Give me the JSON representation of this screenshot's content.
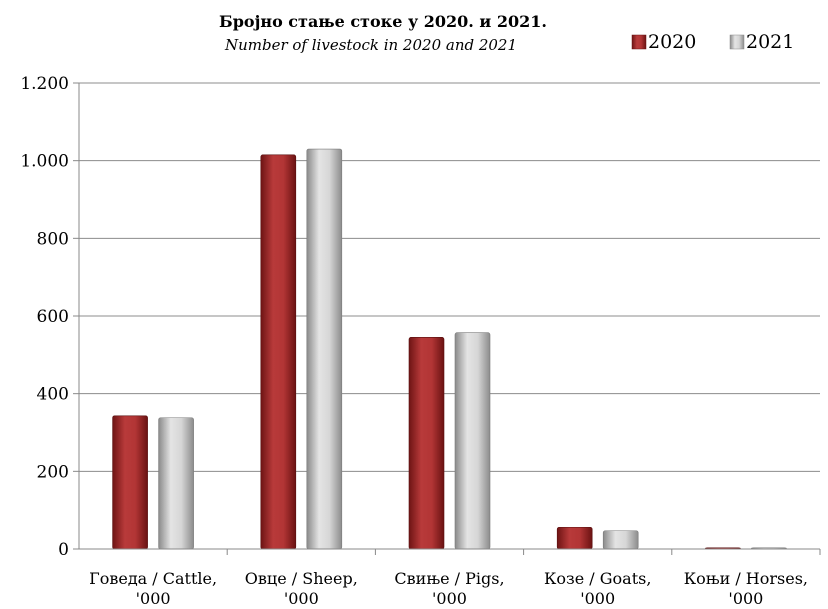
{
  "chart_data": {
    "type": "bar",
    "title": "Бројно стање стоке у 2020. и 2021.",
    "subtitle": "Number of livestock in 2020 and 2021",
    "categories": [
      [
        "Говеда / Cattle,",
        "'000"
      ],
      [
        "Овце / Sheep,",
        "'000"
      ],
      [
        "Свиње / Pigs,",
        "'000"
      ],
      [
        "Козе / Goats,",
        "'000"
      ],
      [
        "Коњи / Horses,",
        "'000"
      ]
    ],
    "series": [
      {
        "name": "2020",
        "color": "#a83232",
        "values": [
          343,
          1015,
          545,
          56,
          3
        ]
      },
      {
        "name": "2021",
        "color": "#b4b4b4",
        "values": [
          338,
          1030,
          557,
          47,
          3
        ]
      }
    ],
    "ylim": [
      0,
      1200
    ],
    "yticks": [
      {
        "value": 0,
        "label": "0"
      },
      {
        "value": 200,
        "label": "200"
      },
      {
        "value": 400,
        "label": "400"
      },
      {
        "value": 600,
        "label": "600"
      },
      {
        "value": 800,
        "label": "800"
      },
      {
        "value": 1000,
        "label": "1.000"
      },
      {
        "value": 1200,
        "label": "1.200"
      }
    ],
    "grid": true,
    "legend": "top-right"
  }
}
